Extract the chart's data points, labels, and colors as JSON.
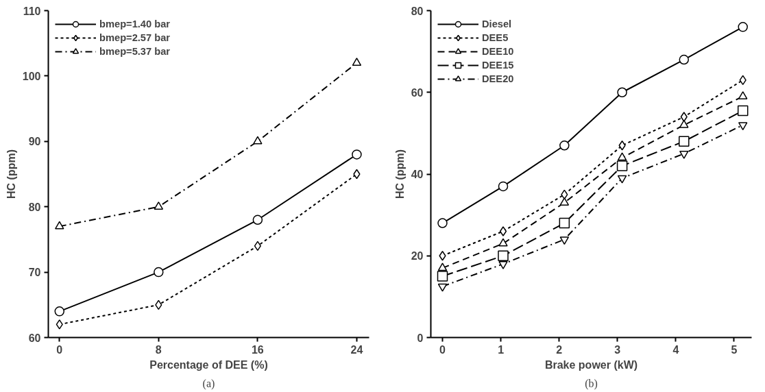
{
  "chart_data": [
    {
      "type": "line",
      "xlabel": "Percentage of DEE (%)",
      "ylabel": "HC (ppm)",
      "annotations": [
        "(a)"
      ],
      "x": [
        0,
        8,
        16,
        24
      ],
      "xlim": [
        -0.9,
        25
      ],
      "xticks": [
        0,
        8,
        16,
        24
      ],
      "ylim": [
        60,
        110
      ],
      "yticks": [
        60,
        70,
        80,
        90,
        100,
        110
      ],
      "grid": false,
      "legend": "top left",
      "series": [
        {
          "name": "bmep=1.40 bar",
          "color": "#000000",
          "marker": "circle",
          "line_style": "solid",
          "values": [
            64,
            70,
            78,
            88
          ]
        },
        {
          "name": "bmep=2.57 bar",
          "color": "#000000",
          "marker": "diamond",
          "line_style": "dotted",
          "values": [
            62,
            65,
            74,
            85
          ]
        },
        {
          "name": "bmep=5.37 bar",
          "color": "#000000",
          "marker": "triangle",
          "line_style": "dashdot",
          "values": [
            77,
            80,
            90,
            102
          ]
        }
      ]
    },
    {
      "type": "line",
      "xlabel": "Brake power (kW)",
      "ylabel": "HC (ppm)",
      "annotations": [
        "(b)"
      ],
      "x": [
        0,
        1.04,
        2.09,
        3.08,
        4.14,
        5.15
      ],
      "xlim": [
        -0.2,
        5.3
      ],
      "xticks": [
        0,
        1,
        2,
        3,
        4,
        5
      ],
      "ylim": [
        0,
        80
      ],
      "yticks": [
        0,
        20,
        40,
        60,
        80
      ],
      "grid": false,
      "legend": "top left",
      "series": [
        {
          "name": "Diesel",
          "color": "#000000",
          "marker": "circle",
          "line_style": "solid",
          "values": [
            28,
            37,
            47,
            60,
            68,
            76
          ]
        },
        {
          "name": "DEE5",
          "color": "#000000",
          "marker": "diamond",
          "line_style": "dotted",
          "values": [
            20,
            26,
            35,
            47,
            54,
            63
          ]
        },
        {
          "name": "DEE10",
          "color": "#000000",
          "marker": "triangle",
          "line_style": "dashed",
          "values": [
            17,
            23,
            33,
            44,
            52,
            59
          ]
        },
        {
          "name": "DEE15",
          "color": "#000000",
          "marker": "square",
          "line_style": "longdash",
          "values": [
            15,
            20,
            28,
            42,
            48,
            55.5
          ]
        },
        {
          "name": "DEE20",
          "color": "#000000",
          "marker": "triangle",
          "line_style": "dashdot",
          "values": [
            12.5,
            18,
            24,
            39,
            45,
            52
          ]
        }
      ]
    }
  ]
}
